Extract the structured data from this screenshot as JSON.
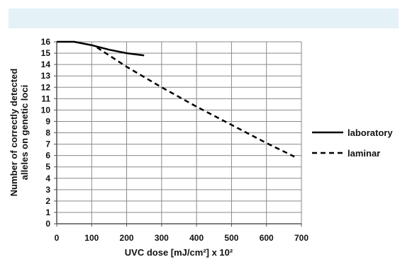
{
  "chart_data": {
    "type": "line",
    "xlabel": "UVC dose [mJ/cm²] x 10²",
    "ylabel_lines": [
      "Number of correctly detected",
      "alleles on genetic loci"
    ],
    "xlim": [
      0,
      700
    ],
    "ylim": [
      0,
      16
    ],
    "xticks": [
      0,
      100,
      200,
      300,
      400,
      500,
      600,
      700
    ],
    "yticks": [
      0,
      1,
      2,
      3,
      4,
      5,
      6,
      7,
      8,
      9,
      10,
      11,
      12,
      13,
      14,
      15,
      16
    ],
    "grid": true,
    "legend_position": "right",
    "series": [
      {
        "name": "laboratory",
        "style": "solid",
        "color": "#000000",
        "x": [
          0,
          50,
          100,
          150,
          200,
          250
        ],
        "y": [
          16,
          16,
          15.7,
          15.3,
          15.0,
          14.8
        ]
      },
      {
        "name": "laminar",
        "style": "dashed",
        "color": "#000000",
        "x": [
          115,
          200,
          300,
          400,
          500,
          600,
          680
        ],
        "y": [
          15.5,
          13.8,
          12.0,
          10.3,
          8.7,
          7.1,
          5.9
        ]
      }
    ]
  }
}
